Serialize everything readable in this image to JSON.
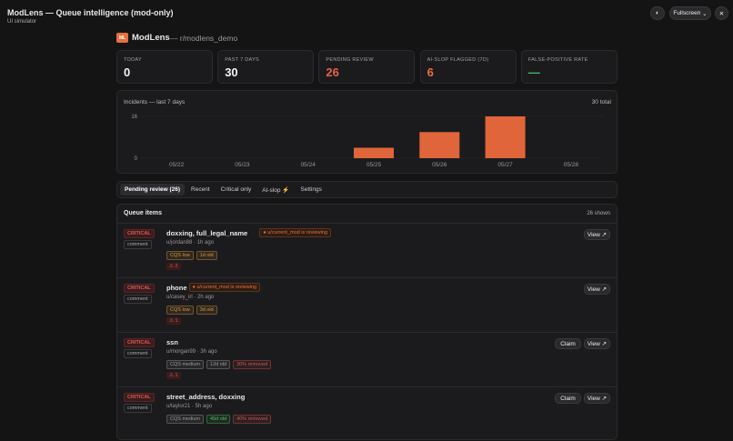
{
  "header": {
    "title": "ModLens — Queue intelligence (mod-only)",
    "subtitle": "UI simulator",
    "fullscreen": "Fullscreen"
  },
  "brand": {
    "logo": "ML",
    "name": "ModLens",
    "subreddit": "— r/modlens_demo"
  },
  "stats": [
    {
      "label": "TODAY",
      "value": 0,
      "color": "#f2f2f2"
    },
    {
      "label": "PAST 7 DAYS",
      "value": 30,
      "color": "#f2f2f2"
    },
    {
      "label": "PENDING REVIEW",
      "value": 26,
      "color": "#e8604c"
    },
    {
      "label": "AI-SLOP FLAGGED (7D)",
      "value": 6,
      "color": "#e8703a"
    },
    {
      "label": "FALSE-POSITIVE RATE",
      "value": "—",
      "color": "#3fbf5f"
    }
  ],
  "chart_data": {
    "type": "bar",
    "title": "Incidents — last 7 days",
    "annotation": "30 total",
    "categories": [
      "05/22",
      "05/23",
      "05/24",
      "05/25",
      "05/26",
      "05/27",
      "05/28"
    ],
    "values": [
      0,
      0,
      0,
      4,
      10,
      16,
      0
    ],
    "color": "#e0653a",
    "ylim": [
      0,
      16
    ],
    "yticks": [
      0,
      16
    ],
    "grid": true
  },
  "tabs": [
    "Pending review (26)",
    "Recent",
    "Critical only",
    "AI-slop ⚡",
    "Settings"
  ],
  "queue": {
    "title": "Queue items",
    "count": "26 shown",
    "items": [
      {
        "severity": "CRITICAL",
        "kind": "comment",
        "title": "doxxing, full_legal_name",
        "reviewing": "● u/current_mod is reviewing",
        "meta": "u/jordan88 · 1h ago",
        "tags": [
          {
            "label": "CQS low",
            "color": "#d89a3a"
          },
          {
            "label": "1d old",
            "color": "#d89a3a"
          }
        ],
        "flags": "⚠ 2",
        "actions": [
          "View ↗"
        ]
      },
      {
        "severity": "CRITICAL",
        "kind": "comment",
        "title": "phone",
        "reviewing": "● u/current_mod is reviewing",
        "meta": "u/casey_irl · 2h ago",
        "tags": [
          {
            "label": "CQS low",
            "color": "#d89a3a"
          },
          {
            "label": "3d old",
            "color": "#d89a3a"
          }
        ],
        "flags": "⚠ 1",
        "actions": [
          "View ↗"
        ]
      },
      {
        "severity": "CRITICAL",
        "kind": "comment",
        "title": "ssn",
        "meta": "u/morgan99 · 3h ago",
        "tags": [
          {
            "label": "CQS medium",
            "color": "#9a9a9a"
          },
          {
            "label": "12d old",
            "color": "#9a9a9a"
          },
          {
            "label": "30% removed",
            "color": "#d0524a"
          }
        ],
        "flags": "⚠ 1",
        "actions": [
          "Claim",
          "View ↗"
        ]
      },
      {
        "severity": "CRITICAL",
        "kind": "comment",
        "title": "street_address, doxxing",
        "meta": "u/taylor21 · 5h ago",
        "tags": [
          {
            "label": "CQS medium",
            "color": "#9a9a9a"
          },
          {
            "label": "45d old",
            "color": "#4fbf5a"
          },
          {
            "label": "40% removed",
            "color": "#d0524a"
          }
        ],
        "actions": [
          "Claim",
          "View ↗"
        ]
      }
    ]
  }
}
